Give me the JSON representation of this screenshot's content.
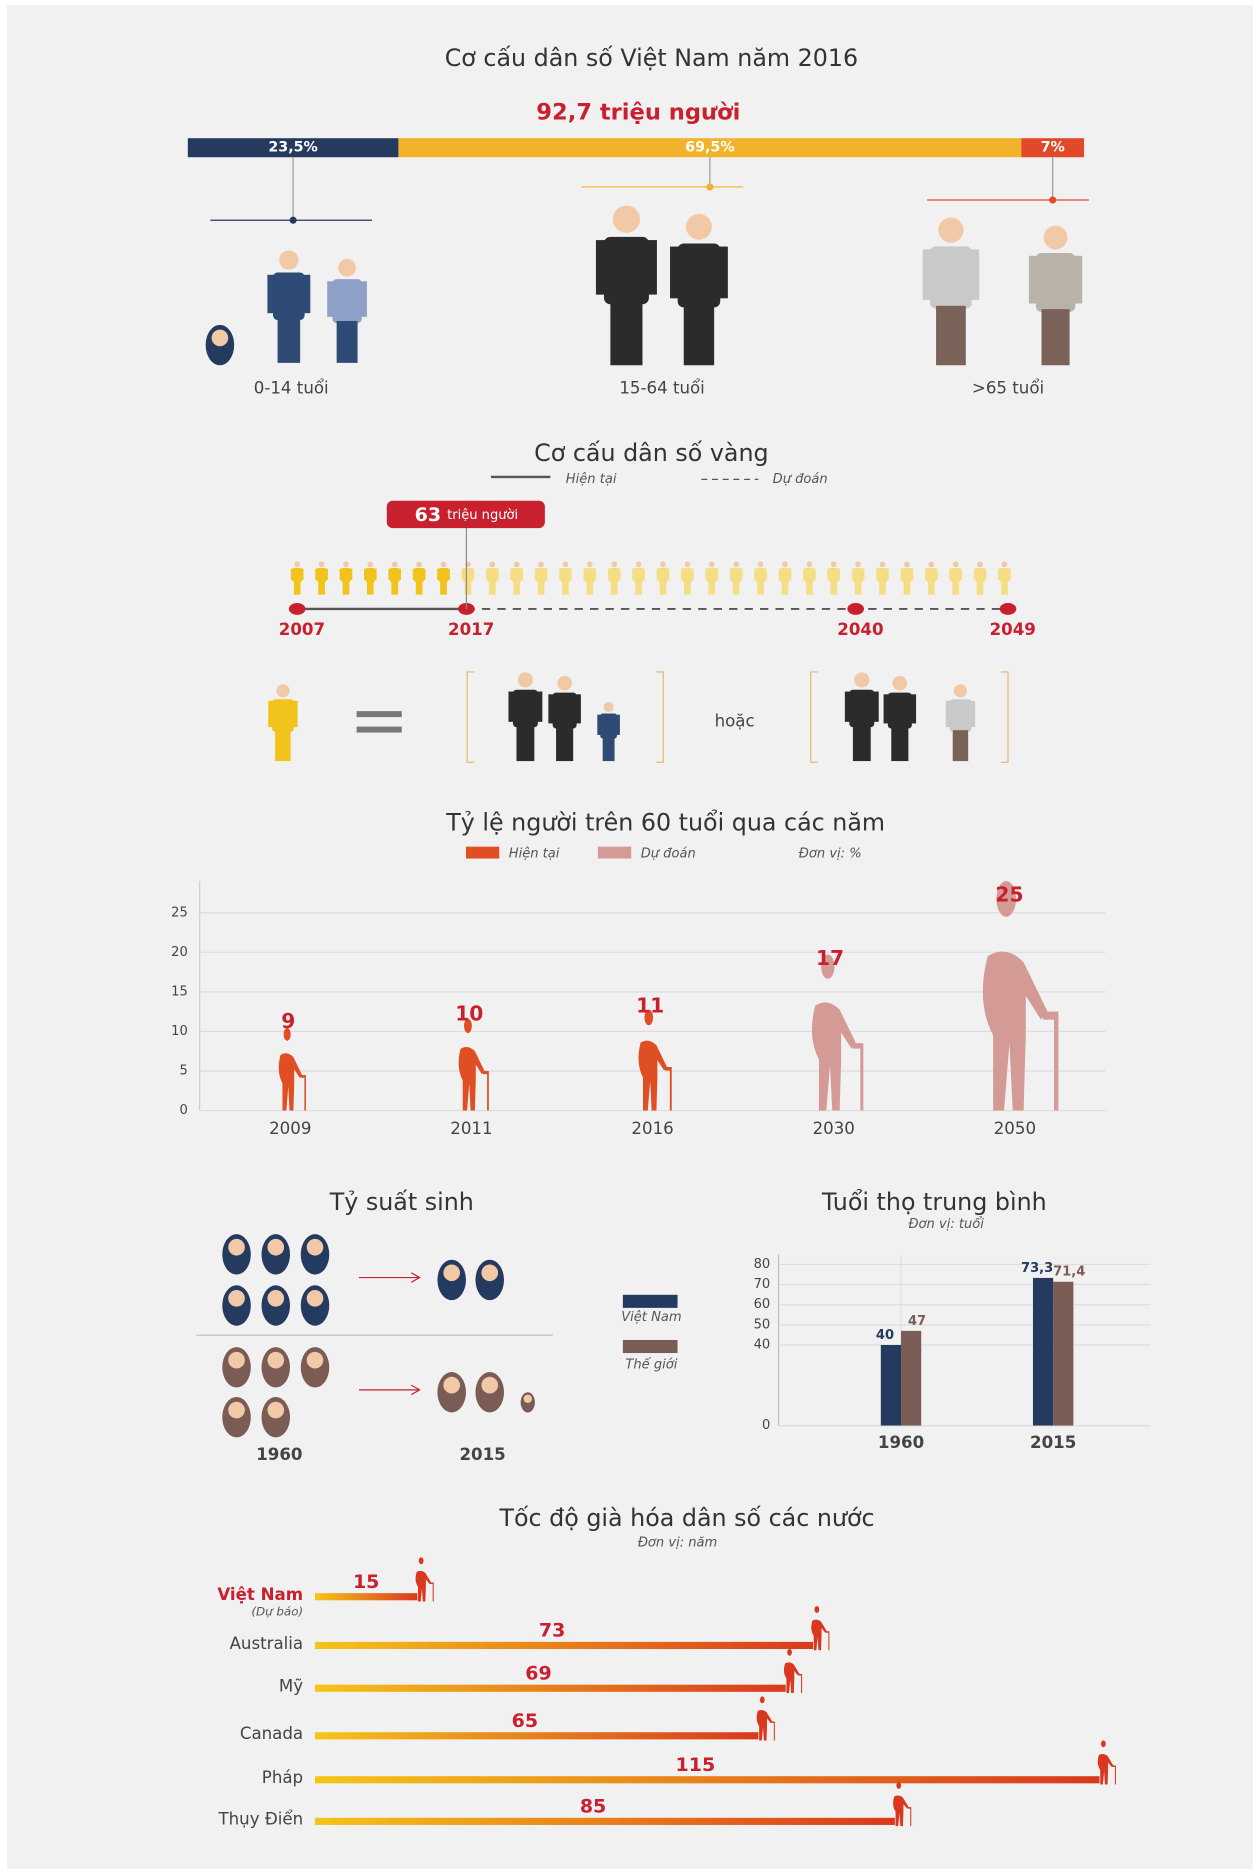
{
  "chart_data": [
    {
      "type": "stacked-bar",
      "title": "Cơ cấu dân số Việt Nam năm 2016",
      "subtitle": "92,7 triệu người",
      "categories": [
        "0-14 tuổi",
        "15-64 tuổi",
        ">65 tuổi"
      ],
      "values": [
        23.5,
        69.5,
        7
      ],
      "value_labels": [
        "23,5%",
        "69,5%",
        "7%"
      ],
      "colors": [
        "#243a5e",
        "#f2b22a",
        "#e2492a"
      ]
    },
    {
      "type": "timeline",
      "title": "Cơ cấu dân số vàng",
      "legend": [
        "Hiện tại",
        "Dự đoán"
      ],
      "x": [
        2007,
        2017,
        2040,
        2049
      ],
      "annotation": {
        "x": 2017,
        "value": 63,
        "unit": "triệu người"
      },
      "color": "#c8202f",
      "icon_color": "#f2c31a",
      "connector": "hoặc"
    },
    {
      "type": "pictogram-bar",
      "title": "Tỷ lệ người trên 60 tuổi qua các năm",
      "unit": "Đơn vị: %",
      "categories": [
        "2009",
        "2011",
        "2016",
        "2030",
        "2050"
      ],
      "series": [
        {
          "name": "Hiện tại",
          "color": "#e04e23",
          "values": [
            9,
            10,
            11,
            null,
            null
          ]
        },
        {
          "name": "Dự đoán",
          "color": "#d49a95",
          "values": [
            null,
            null,
            null,
            17,
            25
          ]
        }
      ],
      "ylim": [
        0,
        29
      ],
      "yticks": [
        0,
        5,
        10,
        15,
        20,
        25
      ],
      "grid": true
    },
    {
      "type": "pictogram",
      "title": "Tỷ suất sinh",
      "categories": [
        "1960",
        "2015"
      ],
      "series": [
        {
          "name": "Việt Nam",
          "color": "#243a5e",
          "values": [
            6,
            2
          ]
        },
        {
          "name": "Thế giới",
          "color": "#7a5c55",
          "values": [
            5,
            2.5
          ]
        }
      ]
    },
    {
      "type": "bar",
      "title": "Tuổi thọ trung bình",
      "subtitle": "Đơn vị: tuổi",
      "categories": [
        "1960",
        "2015"
      ],
      "series": [
        {
          "name": "Việt Nam",
          "color": "#243a5e",
          "values": [
            40,
            73.3
          ],
          "value_labels": [
            "40",
            "73,3"
          ]
        },
        {
          "name": "Thế giới",
          "color": "#7a5c55",
          "values": [
            47,
            71.4
          ],
          "value_labels": [
            "47",
            "71,4"
          ]
        }
      ],
      "ylim": [
        0,
        85
      ],
      "yticks": [
        0,
        40,
        50,
        60,
        70,
        80
      ],
      "grid": true
    },
    {
      "type": "horizontal-bar",
      "title": "Tốc độ già hóa dân số các nước",
      "subtitle": "Đơn vị: năm",
      "categories": [
        "Việt Nam",
        "Australia",
        "Mỹ",
        "Canada",
        "Pháp",
        "Thụy Điển"
      ],
      "category_notes": [
        "(Dự báo)",
        null,
        null,
        null,
        null,
        null
      ],
      "values": [
        15,
        73,
        69,
        65,
        115,
        85
      ],
      "color_start": "#f5c518",
      "color_end": "#d9381e",
      "highlight_color": "#c8202f"
    }
  ]
}
